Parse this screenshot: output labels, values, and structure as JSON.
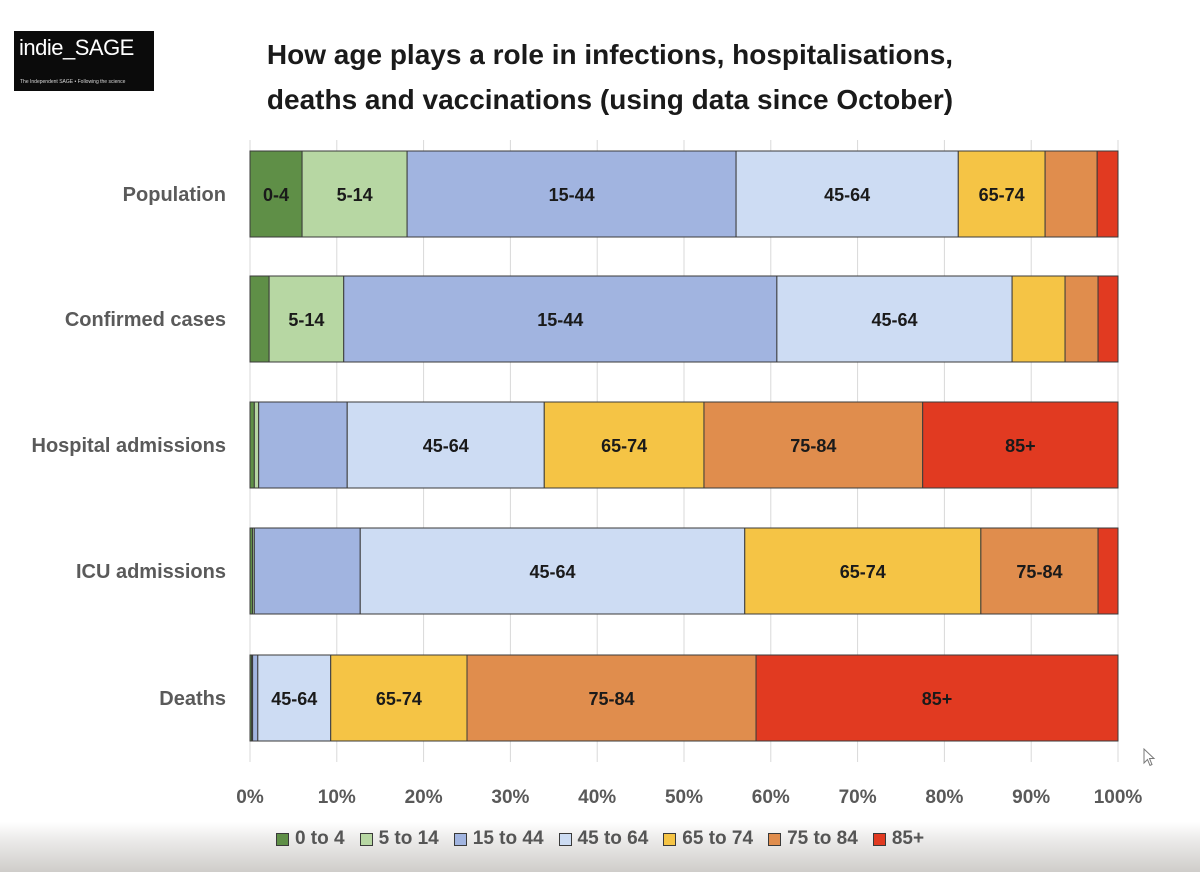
{
  "logo": {
    "text": "indie_SAGE",
    "tagline": "The Independent SAGE • Following the science"
  },
  "chart_data": {
    "type": "bar",
    "orientation": "horizontal",
    "stacked": true,
    "title": "How age plays a role in infections, hospitalisations, deaths and vaccinations (using data since October)",
    "categories": [
      "Population",
      "Confirmed cases",
      "Hospital admissions",
      "ICU admissions",
      "Deaths"
    ],
    "xlim": [
      0,
      100
    ],
    "xticks": [
      "0%",
      "10%",
      "20%",
      "30%",
      "40%",
      "50%",
      "60%",
      "70%",
      "80%",
      "90%",
      "100%"
    ],
    "grid": true,
    "legend_position": "bottom",
    "series": [
      {
        "name": "0 to 4",
        "segment_label": "0-4",
        "color": "#5f8f47",
        "values": [
          6.0,
          2.2,
          0.5,
          0.3,
          0.2
        ]
      },
      {
        "name": "5 to 14",
        "segment_label": "5-14",
        "color": "#b7d7a3",
        "values": [
          12.1,
          8.6,
          0.5,
          0.2,
          0.1
        ]
      },
      {
        "name": "15 to 44",
        "segment_label": "15-44",
        "color": "#a1b4e0",
        "values": [
          37.9,
          49.9,
          10.2,
          12.2,
          0.6
        ]
      },
      {
        "name": "45 to 64",
        "segment_label": "45-64",
        "color": "#cddcf3",
        "values": [
          25.6,
          27.1,
          22.7,
          44.3,
          8.4
        ]
      },
      {
        "name": "65 to 74",
        "segment_label": "65-74",
        "color": "#f5c445",
        "values": [
          10.0,
          6.1,
          18.4,
          27.2,
          15.7
        ]
      },
      {
        "name": "75 to 84",
        "segment_label": "75-84",
        "color": "#e08d4d",
        "values": [
          6.0,
          3.8,
          25.2,
          13.5,
          33.3
        ]
      },
      {
        "name": "85+",
        "segment_label": "85+",
        "color": "#e13a21",
        "values": [
          2.4,
          2.3,
          22.5,
          2.3,
          41.7
        ]
      }
    ],
    "segment_labels_shown": [
      [
        true,
        true,
        true,
        true,
        true,
        false,
        false
      ],
      [
        false,
        true,
        true,
        true,
        false,
        false,
        false
      ],
      [
        false,
        false,
        false,
        true,
        true,
        true,
        true
      ],
      [
        false,
        false,
        false,
        true,
        true,
        true,
        false
      ],
      [
        false,
        false,
        false,
        true,
        true,
        true,
        true
      ]
    ]
  }
}
